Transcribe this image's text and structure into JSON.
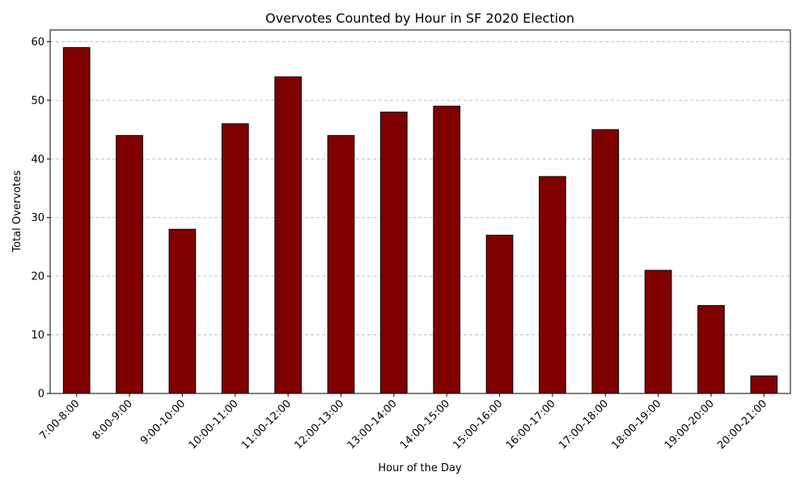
{
  "chart_data": {
    "type": "bar",
    "title": "Overvotes Counted by Hour in SF 2020 Election",
    "xlabel": "Hour of the Day",
    "ylabel": "Total Overvotes",
    "categories": [
      "7:00-8:00",
      "8:00-9:00",
      "9:00-10:00",
      "10:00-11:00",
      "11:00-12:00",
      "12:00-13:00",
      "13:00-14:00",
      "14:00-15:00",
      "15:00-16:00",
      "16:00-17:00",
      "17:00-18:00",
      "18:00-19:00",
      "19:00-20:00",
      "20:00-21:00"
    ],
    "values": [
      59,
      44,
      28,
      46,
      54,
      44,
      48,
      49,
      27,
      37,
      45,
      21,
      15,
      3
    ],
    "ylim": [
      0,
      62
    ],
    "yticks": [
      0,
      10,
      20,
      30,
      40,
      50,
      60
    ],
    "grid": "horizontal-dashed",
    "legend": "none",
    "bar_color": "#800000",
    "bar_edge_color": "#000000",
    "grid_color": "#c0c0c0"
  }
}
